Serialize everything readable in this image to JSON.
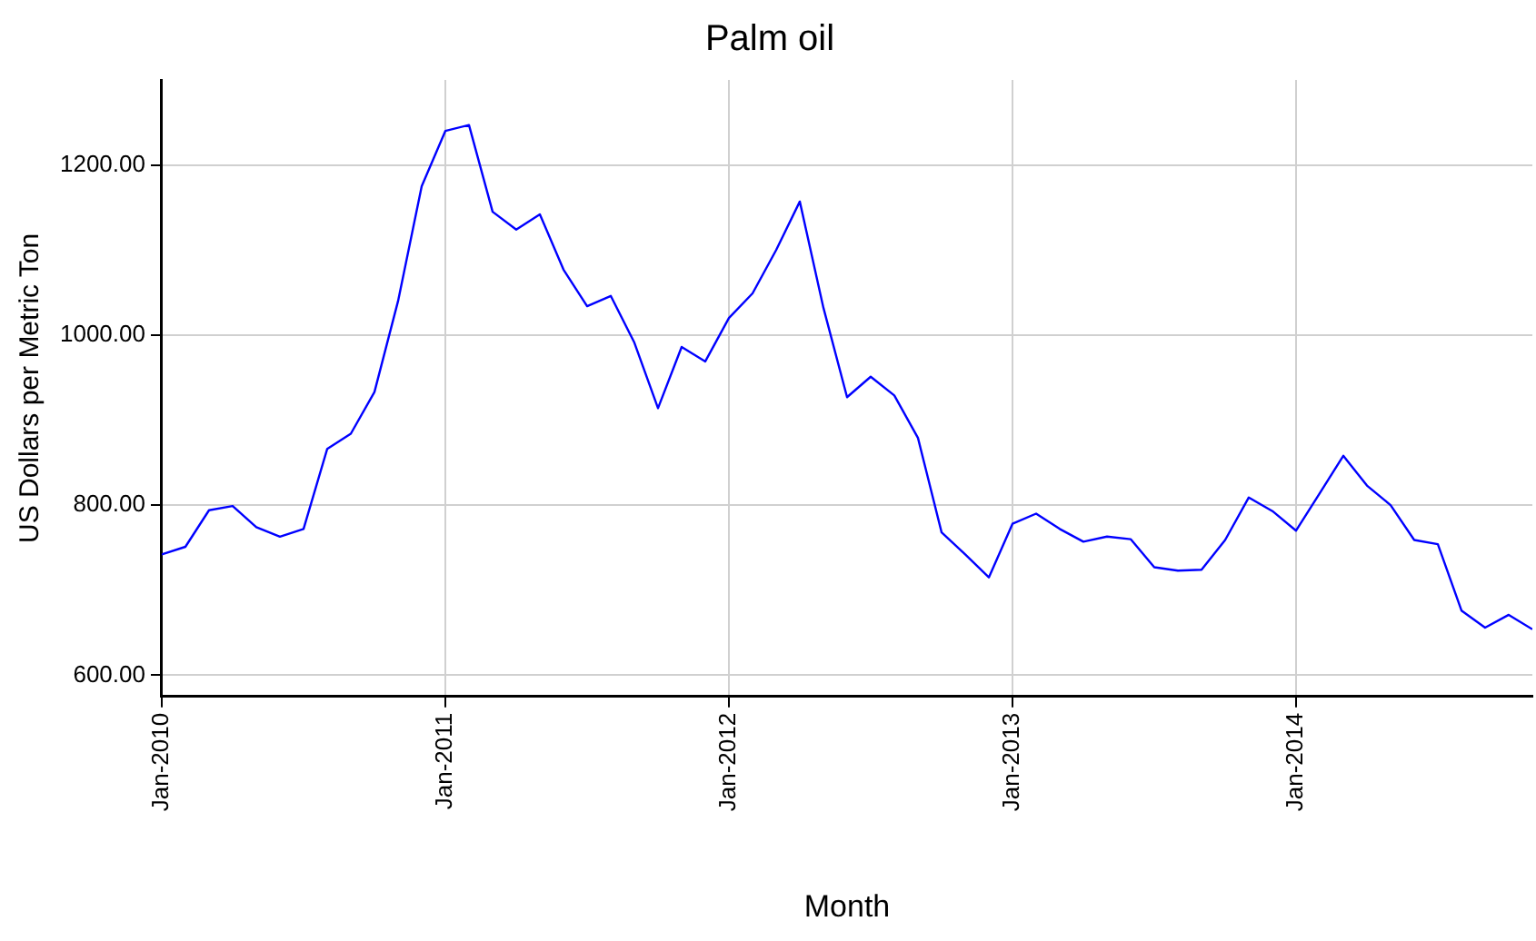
{
  "chart_data": {
    "type": "line",
    "title": "Palm oil",
    "xlabel": "Month",
    "ylabel": "US Dollars per Metric Ton",
    "x": [
      "2010-01",
      "2010-02",
      "2010-03",
      "2010-04",
      "2010-05",
      "2010-06",
      "2010-07",
      "2010-08",
      "2010-09",
      "2010-10",
      "2010-11",
      "2010-12",
      "2011-01",
      "2011-02",
      "2011-03",
      "2011-04",
      "2011-05",
      "2011-06",
      "2011-07",
      "2011-08",
      "2011-09",
      "2011-10",
      "2011-11",
      "2011-12",
      "2012-01",
      "2012-02",
      "2012-03",
      "2012-04",
      "2012-05",
      "2012-06",
      "2012-07",
      "2012-08",
      "2012-09",
      "2012-10",
      "2012-11",
      "2012-12",
      "2013-01",
      "2013-02",
      "2013-03",
      "2013-04",
      "2013-05",
      "2013-06",
      "2013-07",
      "2013-08",
      "2013-09",
      "2013-10",
      "2013-11",
      "2013-12",
      "2014-01",
      "2014-02",
      "2014-03",
      "2014-04",
      "2014-05",
      "2014-06",
      "2014-07",
      "2014-08",
      "2014-09",
      "2014-10",
      "2014-11"
    ],
    "series": [
      {
        "color": "#0000ff",
        "values": [
          742,
          751,
          794,
          799,
          774,
          763,
          772,
          866,
          884,
          933,
          1040,
          1175,
          1240,
          1247,
          1145,
          1124,
          1142,
          1077,
          1034,
          1046,
          991,
          914,
          986,
          969,
          1020,
          1049,
          1100,
          1157,
          1032,
          927,
          951,
          929,
          879,
          768,
          742,
          715,
          778,
          790,
          772,
          757,
          763,
          760,
          727,
          723,
          724,
          759,
          809,
          793,
          770,
          814,
          858,
          823,
          800,
          759,
          754,
          676,
          656,
          671,
          654
        ]
      }
    ],
    "xlim": [
      "2010-01",
      "2014-11"
    ],
    "xticks": [
      {
        "value": "2010-01",
        "label": "Jan-2010"
      },
      {
        "value": "2011-01",
        "label": "Jan-2011"
      },
      {
        "value": "2012-01",
        "label": "Jan-2012"
      },
      {
        "value": "2013-01",
        "label": "Jan-2013"
      },
      {
        "value": "2014-01",
        "label": "Jan-2014"
      }
    ],
    "ylim": [
      575,
      1300
    ],
    "yticks": [
      {
        "value": 600,
        "label": "600.00"
      },
      {
        "value": 800,
        "label": "800.00"
      },
      {
        "value": 1000,
        "label": "1000.00"
      },
      {
        "value": 1200,
        "label": "1200.00"
      }
    ],
    "grid": true,
    "marker": "none",
    "line_style": "solid",
    "legend": false
  }
}
